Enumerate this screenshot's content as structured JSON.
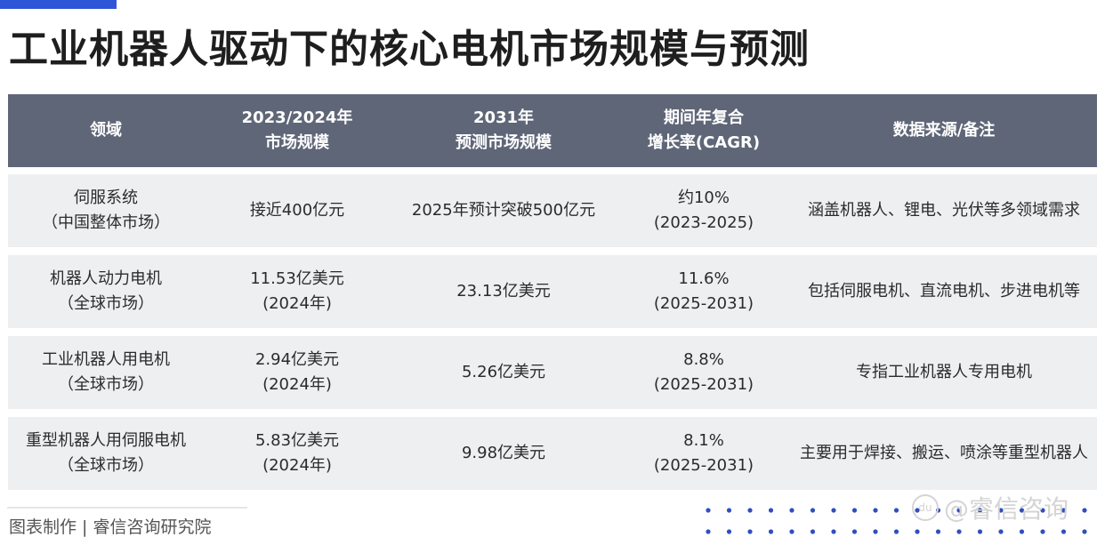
{
  "title": "工业机器人驱动下的核心电机市场规模与预测",
  "table": {
    "headers": [
      [
        "领域"
      ],
      [
        "2023/2024年",
        "市场规模"
      ],
      [
        "2031年",
        "预测市场规模"
      ],
      [
        "期间年复合",
        "增长率(CAGR)"
      ],
      [
        "数据来源/备注"
      ]
    ],
    "rows": [
      {
        "field": [
          "伺服系统",
          "（中国整体市场）"
        ],
        "size": [
          "接近400亿元"
        ],
        "forecast": [
          "2025年预计突破500亿元"
        ],
        "cagr": [
          "约10%",
          "(2023-2025)"
        ],
        "note": [
          "涵盖机器人、锂电、光伏等多领域需求"
        ]
      },
      {
        "field": [
          "机器人动力电机",
          "（全球市场）"
        ],
        "size": [
          "11.53亿美元",
          "(2024年)"
        ],
        "forecast": [
          "23.13亿美元"
        ],
        "cagr": [
          "11.6%",
          "(2025-2031)"
        ],
        "note": [
          "包括伺服电机、直流电机、步进电机等"
        ]
      },
      {
        "field": [
          "工业机器人用电机",
          "（全球市场）"
        ],
        "size": [
          "2.94亿美元",
          "(2024年)"
        ],
        "forecast": [
          "5.26亿美元"
        ],
        "cagr": [
          "8.8%",
          "(2025-2031)"
        ],
        "note": [
          "专指工业机器人专用电机"
        ]
      },
      {
        "field": [
          "重型机器人用伺服电机",
          "（全球市场）"
        ],
        "size": [
          "5.83亿美元",
          "(2024年)"
        ],
        "forecast": [
          "9.98亿美元"
        ],
        "cagr": [
          "8.1%",
          "(2025-2031)"
        ],
        "note": [
          "主要用于焊接、搬运、喷涂等重型机器人"
        ]
      }
    ]
  },
  "footer": {
    "credit": "图表制作 | 睿信咨询研究院",
    "watermark": "@睿信咨询",
    "watermark_logo": "du"
  },
  "colors": {
    "accent": "#2f56d6",
    "header_bg": "#5f6677",
    "row_bg": "#eeeff1",
    "dots": "#2f4fbf"
  }
}
